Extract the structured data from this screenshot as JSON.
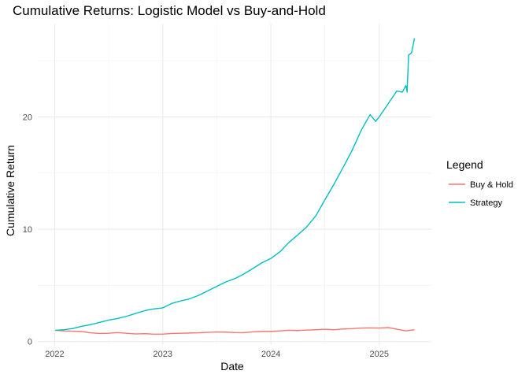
{
  "chart_data": {
    "type": "line",
    "title": "Cumulative Returns: Logistic Model vs Buy-and-Hold",
    "xlabel": "Date",
    "ylabel": "Cumulative Return",
    "x_ticks": [
      "2022",
      "2023",
      "2024",
      "2025"
    ],
    "y_ticks": [
      "0",
      "10",
      "20"
    ],
    "xlim": [
      "2021-11-05",
      "2025-06-26"
    ],
    "ylim": [
      -0.3,
      28.3
    ],
    "grid": true,
    "legend": {
      "title": "Legend",
      "placement": "right"
    },
    "series": [
      {
        "name": "Buy & Hold",
        "color": "#F8766D",
        "points": [
          [
            "2022-01-03",
            1.0
          ],
          [
            "2022-02-01",
            0.95
          ],
          [
            "2022-03-01",
            0.92
          ],
          [
            "2022-04-01",
            0.9
          ],
          [
            "2022-05-01",
            0.78
          ],
          [
            "2022-06-01",
            0.72
          ],
          [
            "2022-07-01",
            0.74
          ],
          [
            "2022-08-01",
            0.8
          ],
          [
            "2022-09-01",
            0.74
          ],
          [
            "2022-10-01",
            0.68
          ],
          [
            "2022-11-01",
            0.7
          ],
          [
            "2022-12-01",
            0.66
          ],
          [
            "2023-01-01",
            0.66
          ],
          [
            "2023-02-01",
            0.72
          ],
          [
            "2023-03-01",
            0.74
          ],
          [
            "2023-04-01",
            0.76
          ],
          [
            "2023-05-01",
            0.78
          ],
          [
            "2023-06-01",
            0.82
          ],
          [
            "2023-07-01",
            0.85
          ],
          [
            "2023-08-01",
            0.84
          ],
          [
            "2023-09-01",
            0.8
          ],
          [
            "2023-10-01",
            0.79
          ],
          [
            "2023-11-01",
            0.86
          ],
          [
            "2023-12-01",
            0.9
          ],
          [
            "2024-01-01",
            0.9
          ],
          [
            "2024-02-01",
            0.95
          ],
          [
            "2024-03-01",
            1.0
          ],
          [
            "2024-04-01",
            0.98
          ],
          [
            "2024-05-01",
            1.02
          ],
          [
            "2024-06-01",
            1.05
          ],
          [
            "2024-07-01",
            1.1
          ],
          [
            "2024-08-01",
            1.05
          ],
          [
            "2024-09-01",
            1.12
          ],
          [
            "2024-10-01",
            1.15
          ],
          [
            "2024-11-01",
            1.2
          ],
          [
            "2024-12-01",
            1.22
          ],
          [
            "2025-01-01",
            1.2
          ],
          [
            "2025-02-01",
            1.25
          ],
          [
            "2025-03-01",
            1.1
          ],
          [
            "2025-04-01",
            0.95
          ],
          [
            "2025-04-15",
            1.0
          ],
          [
            "2025-04-30",
            1.05
          ]
        ]
      },
      {
        "name": "Strategy",
        "color": "#00BFC4",
        "points": [
          [
            "2022-01-03",
            1.0
          ],
          [
            "2022-02-01",
            1.05
          ],
          [
            "2022-03-01",
            1.15
          ],
          [
            "2022-04-01",
            1.35
          ],
          [
            "2022-05-01",
            1.5
          ],
          [
            "2022-06-01",
            1.7
          ],
          [
            "2022-07-01",
            1.9
          ],
          [
            "2022-08-01",
            2.05
          ],
          [
            "2022-09-01",
            2.25
          ],
          [
            "2022-10-01",
            2.5
          ],
          [
            "2022-11-01",
            2.75
          ],
          [
            "2022-12-01",
            2.9
          ],
          [
            "2023-01-01",
            3.0
          ],
          [
            "2023-02-01",
            3.4
          ],
          [
            "2023-03-01",
            3.6
          ],
          [
            "2023-04-01",
            3.8
          ],
          [
            "2023-05-01",
            4.1
          ],
          [
            "2023-06-01",
            4.5
          ],
          [
            "2023-07-01",
            4.9
          ],
          [
            "2023-08-01",
            5.3
          ],
          [
            "2023-09-01",
            5.6
          ],
          [
            "2023-10-01",
            6.0
          ],
          [
            "2023-11-01",
            6.5
          ],
          [
            "2023-12-01",
            7.0
          ],
          [
            "2024-01-01",
            7.4
          ],
          [
            "2024-02-01",
            8.0
          ],
          [
            "2024-03-01",
            8.8
          ],
          [
            "2024-04-01",
            9.5
          ],
          [
            "2024-05-01",
            10.2
          ],
          [
            "2024-06-01",
            11.2
          ],
          [
            "2024-07-01",
            12.6
          ],
          [
            "2024-08-01",
            14.0
          ],
          [
            "2024-09-01",
            15.5
          ],
          [
            "2024-10-01",
            17.0
          ],
          [
            "2024-11-01",
            18.8
          ],
          [
            "2024-12-01",
            20.2
          ],
          [
            "2024-12-20",
            19.6
          ],
          [
            "2025-01-01",
            20.0
          ],
          [
            "2025-02-01",
            21.2
          ],
          [
            "2025-03-01",
            22.3
          ],
          [
            "2025-03-20",
            22.2
          ],
          [
            "2025-04-01",
            22.8
          ],
          [
            "2025-04-05",
            22.2
          ],
          [
            "2025-04-10",
            25.5
          ],
          [
            "2025-04-20",
            25.7
          ],
          [
            "2025-04-30",
            27.0
          ]
        ]
      }
    ]
  }
}
